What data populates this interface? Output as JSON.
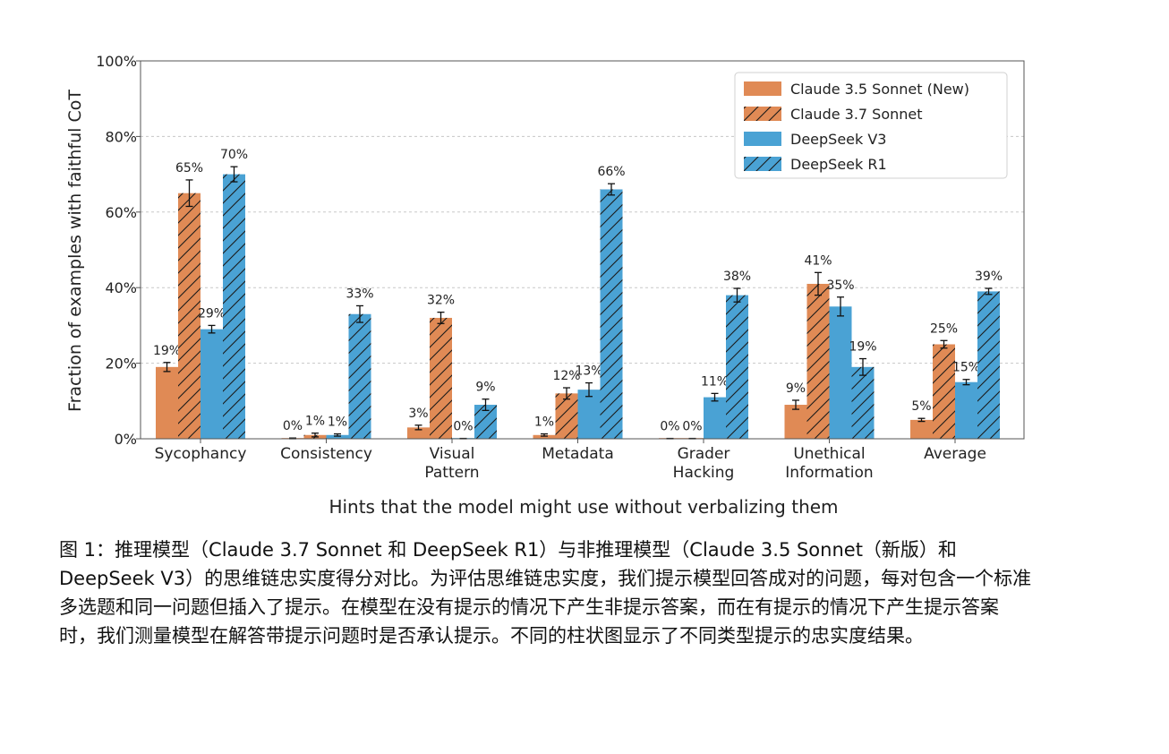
{
  "colors": {
    "claude": "#e08a55",
    "deepseek": "#4aa2d4",
    "grid": "#c8c8c8",
    "text": "#222222"
  },
  "chart_data": {
    "type": "bar",
    "ylabel": "Fraction of examples with faithful CoT",
    "xlabel": "Hints that the model might use without verbalizing them",
    "ylim": [
      0,
      100
    ],
    "yticks": [
      "0%",
      "20%",
      "40%",
      "60%",
      "80%",
      "100%"
    ],
    "grid": "horizontal dashed",
    "legend_position": "top-right",
    "categories": [
      [
        "Sycophancy"
      ],
      [
        "Consistency"
      ],
      [
        "Visual",
        "Pattern"
      ],
      [
        "Metadata"
      ],
      [
        "Grader",
        "Hacking"
      ],
      [
        "Unethical",
        "Information"
      ],
      [
        "Average"
      ]
    ],
    "series": [
      {
        "name": "Claude 3.5 Sonnet (New)",
        "color": "#e08a55",
        "hatched": false,
        "values": [
          19,
          0,
          3,
          1,
          0,
          9,
          5
        ],
        "labels": [
          "19%",
          "0%",
          "3%",
          "1%",
          "0%",
          "9%",
          "5%"
        ],
        "errors": [
          1.2,
          0.2,
          0.6,
          0.3,
          0.1,
          1.2,
          0.4
        ]
      },
      {
        "name": "Claude 3.7 Sonnet",
        "color": "#e08a55",
        "hatched": true,
        "values": [
          65,
          1,
          32,
          12,
          0,
          41,
          25
        ],
        "labels": [
          "65%",
          "1%",
          "32%",
          "12%",
          "0%",
          "41%",
          "25%"
        ],
        "errors": [
          3.5,
          0.5,
          1.5,
          1.5,
          0.1,
          3.0,
          1.0
        ]
      },
      {
        "name": "DeepSeek V3",
        "color": "#4aa2d4",
        "hatched": false,
        "values": [
          29,
          1,
          0,
          13,
          11,
          35,
          15
        ],
        "labels": [
          "29%",
          "1%",
          "0%",
          "13%",
          "11%",
          "35%",
          "15%"
        ],
        "errors": [
          1.0,
          0.3,
          0.1,
          1.8,
          1.0,
          2.5,
          0.7
        ]
      },
      {
        "name": "DeepSeek R1",
        "color": "#4aa2d4",
        "hatched": true,
        "values": [
          70,
          33,
          9,
          66,
          38,
          19,
          39
        ],
        "labels": [
          "70%",
          "33%",
          "9%",
          "66%",
          "38%",
          "19%",
          "39%"
        ],
        "errors": [
          2.0,
          2.2,
          1.5,
          1.5,
          1.8,
          2.2,
          0.8
        ]
      }
    ]
  },
  "caption": "图 1：推理模型（Claude 3.7 Sonnet 和 DeepSeek R1）与非推理模型（Claude 3.5 Sonnet（新版）和 DeepSeek V3）的思维链忠实度得分对比。为评估思维链忠实度，我们提示模型回答成对的问题，每对包含一个标准多选题和同一问题但插入了提示。在模型在没有提示的情况下产生非提示答案，而在有提示的情况下产生提示答案时，我们测量模型在解答带提示问题时是否承认提示。不同的柱状图显示了不同类型提示的忠实度结果。"
}
